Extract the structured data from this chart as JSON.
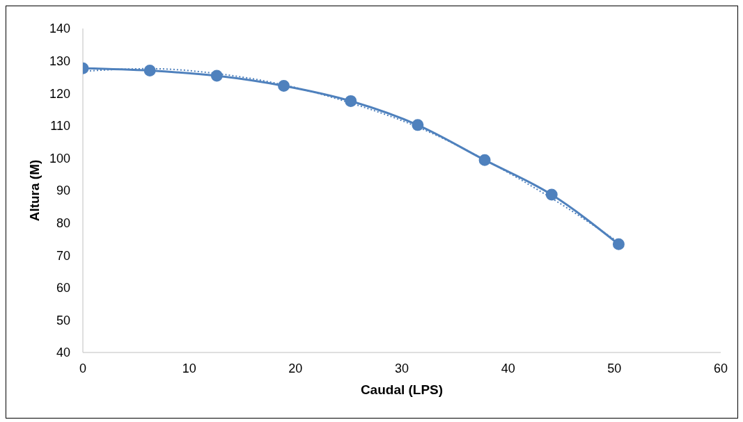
{
  "chart_data": {
    "type": "line",
    "xlabel": "Caudal (LPS)",
    "ylabel": "Altura (M)",
    "xlim": [
      0,
      60
    ],
    "xticks": [
      0,
      10,
      20,
      30,
      40,
      50,
      60
    ],
    "ylim": [
      40,
      140
    ],
    "yticks": [
      40,
      50,
      60,
      70,
      80,
      90,
      100,
      110,
      120,
      130,
      140
    ],
    "grid": false,
    "legend": false,
    "marker": "circle",
    "line_style": "solid",
    "series": [
      {
        "color": "#4f81bd",
        "x": [
          0,
          6.3,
          12.6,
          18.9,
          25.2,
          31.5,
          37.8,
          44.1,
          50.4
        ],
        "values": [
          127.7,
          127,
          125.4,
          122.3,
          117.6,
          110.2,
          99.4,
          88.7,
          73.4
        ]
      },
      {
        "type": "line",
        "color": "#4f81bd",
        "marker": "none",
        "line_style": "dotted",
        "x": [
          0,
          6.3,
          12.6,
          18.9,
          25.2,
          31.5,
          37.8,
          44.1,
          50.4
        ],
        "values": [
          126.8,
          127.6,
          126.1,
          122.6,
          117,
          109.6,
          99.5,
          87.6,
          74
        ]
      }
    ]
  }
}
